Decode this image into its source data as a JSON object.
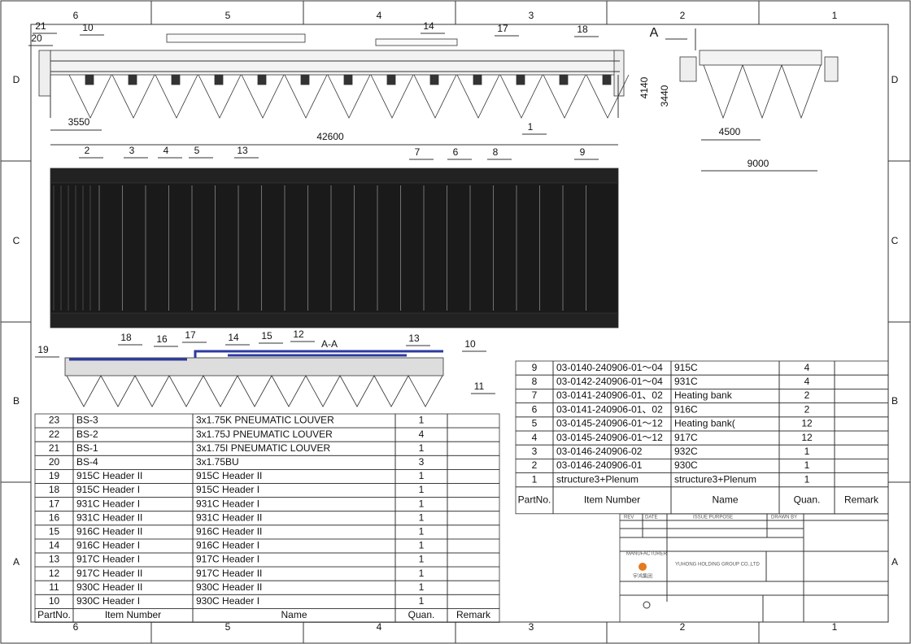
{
  "border": {
    "zones_h": [
      "6",
      "5",
      "4",
      "3",
      "2",
      "1"
    ],
    "zones_v": [
      "D",
      "C",
      "B",
      "A"
    ]
  },
  "elevation": {
    "balloons": [
      "21",
      "20",
      "10",
      "14",
      "17",
      "18",
      "2",
      "3",
      "4",
      "5",
      "13",
      "7",
      "6",
      "8",
      "9",
      "1"
    ],
    "dimensions": [
      "3550",
      "42600"
    ]
  },
  "side_view": {
    "view_label": "A",
    "dimensions": [
      "4140",
      "3440",
      "4500",
      "9000"
    ]
  },
  "section": {
    "title": "A-A",
    "balloons": [
      "18",
      "16",
      "17",
      "14",
      "15",
      "12",
      "13",
      "10",
      "19",
      "11"
    ]
  },
  "bom_left": {
    "header": [
      "PartNo.",
      "Item Number",
      "Name",
      "Quan.",
      "Remark"
    ],
    "rows": [
      [
        23,
        "BS-3",
        "3x1.75K PNEUMATIC LOUVER",
        1
      ],
      [
        22,
        "BS-2",
        "3x1.75J PNEUMATIC LOUVER",
        4
      ],
      [
        21,
        "BS-1",
        "3x1.75I PNEUMATIC LOUVER",
        1
      ],
      [
        20,
        "BS-4",
        "3x1.75BU",
        3
      ],
      [
        19,
        "915C Header II",
        "915C Header II",
        1
      ],
      [
        18,
        "915C Header I",
        "915C Header I",
        1
      ],
      [
        17,
        "931C Header I",
        "931C Header I",
        1
      ],
      [
        16,
        "931C Header II",
        "931C Header II",
        1
      ],
      [
        15,
        "916C Header II",
        "916C Header II",
        1
      ],
      [
        14,
        "916C Header I",
        "916C Header I",
        1
      ],
      [
        13,
        "917C Header I",
        "917C Header I",
        1
      ],
      [
        12,
        "917C Header II",
        "917C Header II",
        1
      ],
      [
        11,
        "930C Header II",
        "930C Header II",
        1
      ],
      [
        10,
        "930C Header I",
        "930C Header I",
        1
      ]
    ]
  },
  "bom_right": {
    "header": [
      "PartNo.",
      "Item Number",
      "Name",
      "Quan.",
      "Remark"
    ],
    "rows": [
      [
        9,
        "03-0140-240906-01～04",
        "915C",
        4
      ],
      [
        8,
        "03-0142-240906-01～04",
        "931C",
        4
      ],
      [
        7,
        "03-0141-240906-01、02",
        "Heating bank",
        2
      ],
      [
        6,
        "03-0141-240906-01、02",
        "916C",
        2
      ],
      [
        5,
        "03-0145-240906-01～12",
        "Heating bank(",
        12
      ],
      [
        4,
        "03-0145-240906-01～12",
        "917C",
        12
      ],
      [
        3,
        "03-0146-240906-02",
        "932C",
        1
      ],
      [
        2,
        "03-0146-240906-01",
        "930C",
        1
      ],
      [
        1,
        "structure3+Plenum",
        "structure3+Plenum",
        1
      ]
    ]
  },
  "title_block": {
    "rev": "REV",
    "date": "DATE",
    "issue_purpose": "ISSUE PURPOSE",
    "drawn_by": "DRAWN BY",
    "manufacturer": "MANUFACTURER",
    "company": "YUHONG HOLDING GROUP CO.,LTD",
    "logo_text": "宇鸿集团"
  }
}
